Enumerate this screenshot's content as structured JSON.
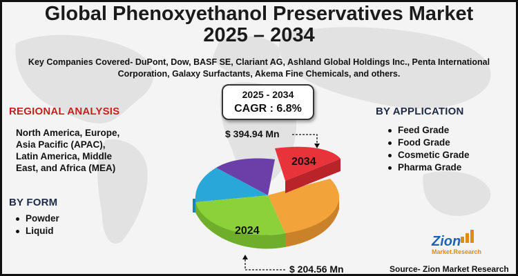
{
  "title_line1": "Global Phenoxyethanol Preservatives Market",
  "title_line2": "2025 – 2034",
  "companies_line1": "Key Companies Covered- DuPont, Dow, BASF SE, Clariant AG, Ashland Global Holdings Inc., Penta International",
  "companies_line2": "Corporation, Galaxy Surfactants, Akema Fine Chemicals, and others.",
  "cagr": {
    "years": "2025 - 2034",
    "value": "CAGR : 6.8%"
  },
  "regional": {
    "heading": "REGIONAL ANALYSIS",
    "lines": [
      "North America, Europe,",
      "Asia Pacific (APAC),",
      "Latin America, Middle",
      "East, and Africa (MEA)"
    ]
  },
  "form": {
    "heading": "BY FORM",
    "items": [
      "Powder",
      "Liquid"
    ]
  },
  "application": {
    "heading": "BY APPLICATION",
    "items": [
      "Feed Grade",
      "Food Grade",
      "Cosmetic Grade",
      "Pharma Grade"
    ]
  },
  "values": {
    "top": "$ 394.94 Mn",
    "bottom": "$ 204.56 Mn"
  },
  "pie_labels": {
    "top": "2034",
    "bottom": "2024"
  },
  "logo": {
    "main": "Zion",
    "sub": "Market.Research"
  },
  "source": "Source- Zion Market Research",
  "colors": {
    "red": "#e8333a",
    "orange": "#f2a33a",
    "green": "#8bd13a",
    "blue": "#2aa7d9",
    "purple": "#6b3fa8",
    "heading_red": "#c0221f",
    "heading_dark": "#1f2a44"
  }
}
